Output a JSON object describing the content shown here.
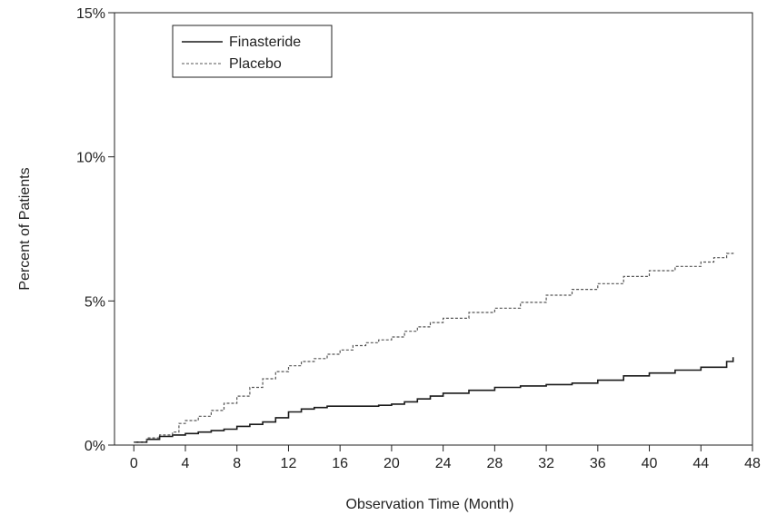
{
  "chart_data": {
    "type": "line",
    "title": "",
    "xlabel": "Observation Time (Month)",
    "ylabel": "Percent of Patients",
    "xlim": [
      -1.5,
      48
    ],
    "ylim": [
      0,
      15
    ],
    "x_ticks": [
      0,
      4,
      8,
      12,
      16,
      20,
      24,
      28,
      32,
      36,
      40,
      44,
      48
    ],
    "y_ticks": [
      0,
      5,
      10,
      15
    ],
    "y_tick_labels": [
      "0%",
      "5%",
      "10%",
      "15%"
    ],
    "grid": false,
    "legend_position": "top-left",
    "series": [
      {
        "name": "Finasteride",
        "line_style": "solid",
        "color": "#1a1a1a",
        "x": [
          0,
          1,
          2,
          3,
          4,
          5,
          6,
          7,
          8,
          9,
          10,
          11,
          12,
          13,
          14,
          15,
          16,
          17,
          18,
          19,
          20,
          21,
          22,
          23,
          24,
          26,
          28,
          30,
          32,
          34,
          36,
          38,
          40,
          42,
          44,
          46,
          46.5
        ],
        "y": [
          0.1,
          0.2,
          0.3,
          0.35,
          0.4,
          0.45,
          0.5,
          0.55,
          0.65,
          0.72,
          0.8,
          0.95,
          1.15,
          1.25,
          1.3,
          1.35,
          1.35,
          1.35,
          1.35,
          1.38,
          1.42,
          1.5,
          1.6,
          1.7,
          1.8,
          1.9,
          2.0,
          2.05,
          2.1,
          2.15,
          2.25,
          2.4,
          2.5,
          2.6,
          2.7,
          2.9,
          3.05
        ]
      },
      {
        "name": "Placebo",
        "line_style": "dashed",
        "color": "#555555",
        "x": [
          0,
          1,
          2,
          3,
          3.5,
          4,
          5,
          6,
          7,
          8,
          9,
          10,
          11,
          12,
          13,
          14,
          15,
          16,
          17,
          18,
          19,
          20,
          21,
          22,
          23,
          24,
          26,
          28,
          30,
          32,
          34,
          36,
          38,
          40,
          42,
          44,
          45,
          46,
          46.5
        ],
        "y": [
          0.1,
          0.25,
          0.35,
          0.45,
          0.75,
          0.85,
          1.0,
          1.2,
          1.45,
          1.7,
          2.0,
          2.3,
          2.55,
          2.75,
          2.9,
          3.0,
          3.15,
          3.3,
          3.45,
          3.55,
          3.65,
          3.75,
          3.95,
          4.1,
          4.25,
          4.4,
          4.6,
          4.75,
          4.95,
          5.2,
          5.4,
          5.6,
          5.85,
          6.05,
          6.2,
          6.35,
          6.5,
          6.65,
          6.7
        ]
      }
    ]
  }
}
